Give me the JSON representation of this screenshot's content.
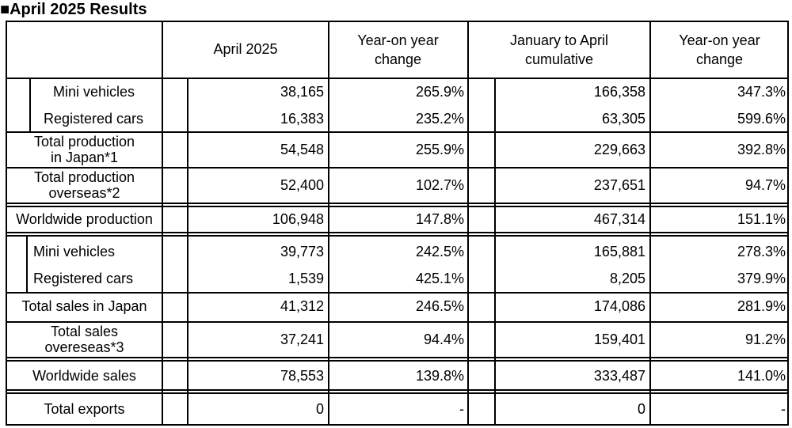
{
  "title": "■April 2025 Results",
  "headers": {
    "month": "April 2025",
    "yoy1": [
      "Year-on year",
      "change"
    ],
    "cumulative": [
      "January to April",
      "cumulative"
    ],
    "yoy2": [
      "Year-on year",
      "change"
    ]
  },
  "rows": [
    {
      "label": "Mini vehicles",
      "month": "38,165",
      "yoy1": "265.9%",
      "cum": "166,358",
      "yoy2": "347.3%"
    },
    {
      "label": "Registered cars",
      "month": "16,383",
      "yoy1": "235.2%",
      "cum": "63,305",
      "yoy2": "599.6%"
    },
    {
      "label": [
        "Total production",
        "in Japan*1"
      ],
      "month": "54,548",
      "yoy1": "255.9%",
      "cum": "229,663",
      "yoy2": "392.8%"
    },
    {
      "label": [
        "Total production",
        "overseas*2"
      ],
      "month": "52,400",
      "yoy1": "102.7%",
      "cum": "237,651",
      "yoy2": "94.7%"
    },
    {
      "label": "Worldwide production",
      "month": "106,948",
      "yoy1": "147.8%",
      "cum": "467,314",
      "yoy2": "151.1%"
    },
    {
      "label": "Mini vehicles",
      "month": "39,773",
      "yoy1": "242.5%",
      "cum": "165,881",
      "yoy2": "278.3%"
    },
    {
      "label": "Registered cars",
      "month": "1,539",
      "yoy1": "425.1%",
      "cum": "8,205",
      "yoy2": "379.9%"
    },
    {
      "label": "Total sales in Japan",
      "month": "41,312",
      "yoy1": "246.5%",
      "cum": "174,086",
      "yoy2": "281.9%"
    },
    {
      "label": [
        "Total sales",
        "overeseas*3"
      ],
      "month": "37,241",
      "yoy1": "94.4%",
      "cum": "159,401",
      "yoy2": "91.2%"
    },
    {
      "label": "Worldwide sales",
      "month": "78,553",
      "yoy1": "139.8%",
      "cum": "333,487",
      "yoy2": "141.0%"
    },
    {
      "label": "Total exports",
      "month": "0",
      "yoy1": "-",
      "cum": "0",
      "yoy2": "-"
    }
  ]
}
